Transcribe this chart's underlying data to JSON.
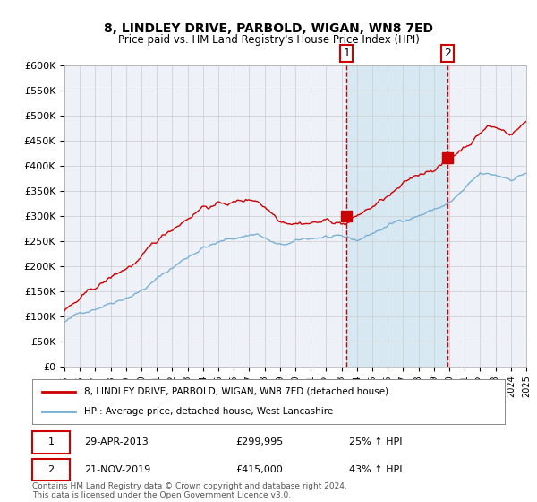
{
  "title": "8, LINDLEY DRIVE, PARBOLD, WIGAN, WN8 7ED",
  "subtitle": "Price paid vs. HM Land Registry's House Price Index (HPI)",
  "legend_red": "8, LINDLEY DRIVE, PARBOLD, WIGAN, WN8 7ED (detached house)",
  "legend_blue": "HPI: Average price, detached house, West Lancashire",
  "annotation1_date": "29-APR-2013",
  "annotation1_price": "£299,995",
  "annotation1_hpi": "25% ↑ HPI",
  "annotation2_date": "21-NOV-2019",
  "annotation2_price": "£415,000",
  "annotation2_hpi": "43% ↑ HPI",
  "sale1_year": 2013.33,
  "sale1_value": 299995,
  "sale2_year": 2019.9,
  "sale2_value": 415000,
  "ylim": [
    0,
    600000
  ],
  "xlim_start": 1995,
  "xlim_end": 2025,
  "ylabel_ticks": [
    0,
    50000,
    100000,
    150000,
    200000,
    250000,
    300000,
    350000,
    400000,
    450000,
    500000,
    550000,
    600000
  ],
  "footer": "Contains HM Land Registry data © Crown copyright and database right 2024.\nThis data is licensed under the Open Government Licence v3.0.",
  "background_color": "#ffffff",
  "plot_bg_color": "#eef2f8",
  "grid_color": "#cccccc",
  "red_color": "#cc0000",
  "blue_color": "#7ab0d4",
  "shade_color": "#d0e4f0"
}
